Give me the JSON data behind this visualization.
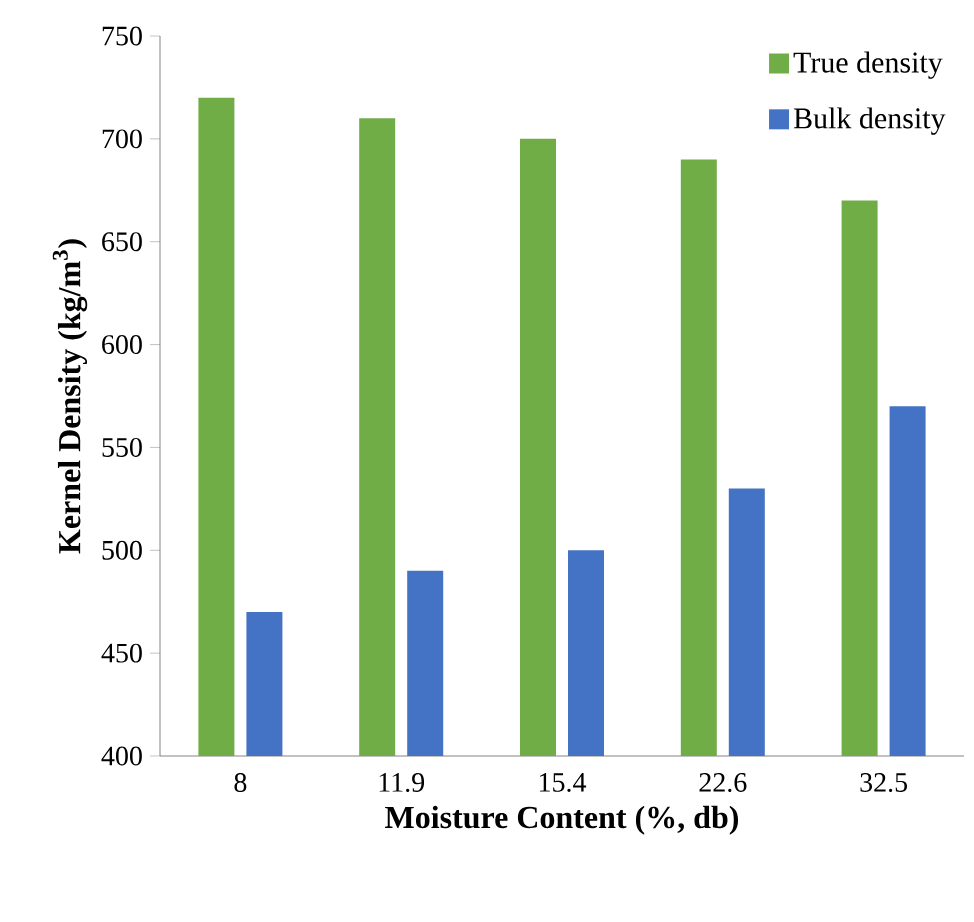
{
  "chart_data": {
    "type": "bar",
    "xlabel": "Moisture Content (%, db)",
    "ylabel": "Kernel Density (kg/m$^{3}$)",
    "categories": [
      "8",
      "11.9",
      "15.4",
      "22.6",
      "32.5"
    ],
    "series": [
      {
        "name": "True density",
        "color": "#70ad47",
        "values": [
          720,
          710,
          700,
          690,
          670
        ]
      },
      {
        "name": "Bulk density",
        "color": "#4472c4",
        "values": [
          470,
          490,
          500,
          530,
          570
        ]
      }
    ],
    "ylim": [
      400,
      750
    ],
    "yticks": [
      400,
      450,
      500,
      550,
      600,
      650,
      700,
      750
    ],
    "grid": false,
    "legend": "top right"
  }
}
